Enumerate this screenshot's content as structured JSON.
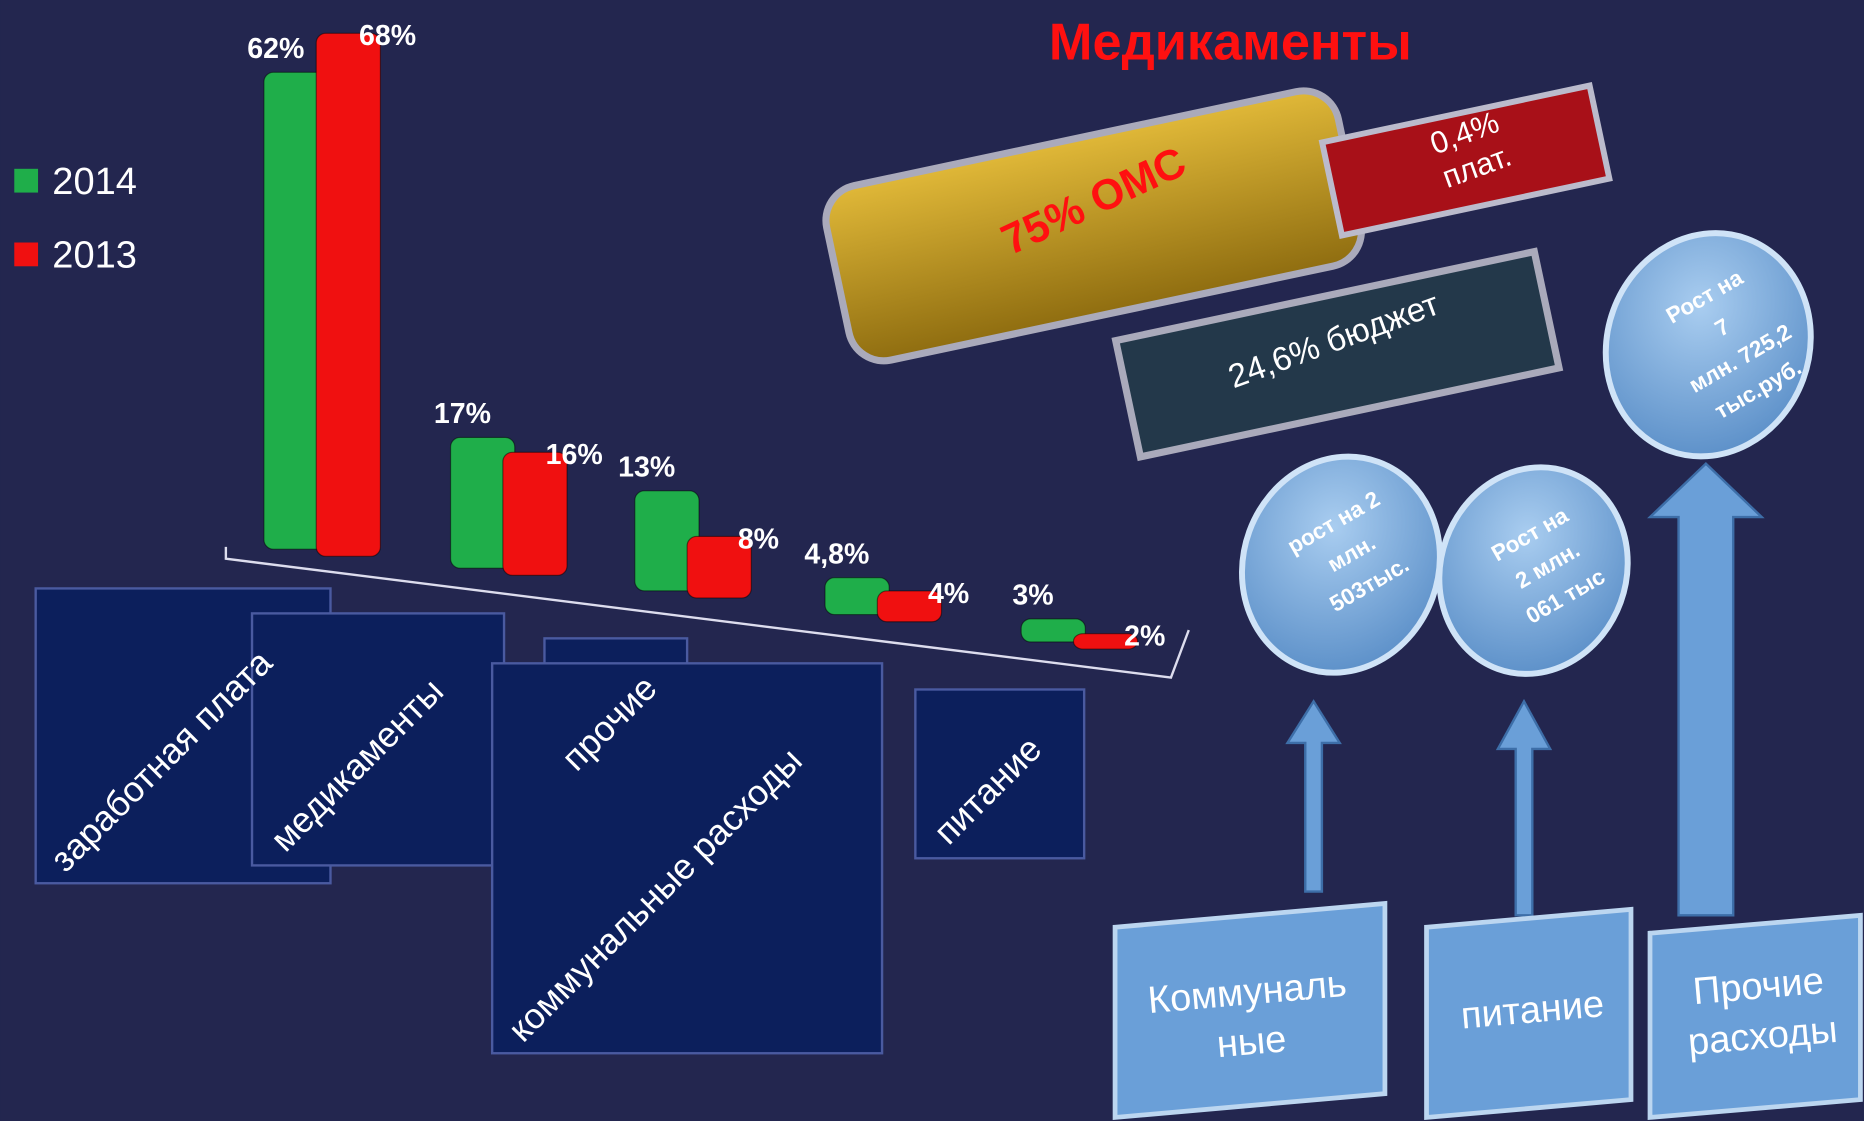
{
  "chart_data": {
    "type": "bar",
    "categories": [
      "заработная плата",
      "медикаменты",
      "прочие",
      "коммунальные расходы",
      "питание"
    ],
    "series": [
      {
        "name": "2014",
        "color": "#1fae4a",
        "values": [
          62,
          17,
          13,
          4.8,
          3
        ],
        "value_labels": [
          "62%",
          "17%",
          "13%",
          "4,8%",
          "3%"
        ]
      },
      {
        "name": "2013",
        "color": "#f01010",
        "values": [
          68,
          16,
          8,
          4,
          2
        ],
        "value_labels": [
          "68%",
          "16%",
          "8%",
          "4%",
          "2%"
        ]
      }
    ]
  },
  "infographic": {
    "title": "Медикаменты",
    "sources": [
      {
        "lines": [
          "75% ОМС"
        ]
      },
      {
        "lines": [
          "0,4%",
          "плат."
        ]
      },
      {
        "lines": [
          "24,6% бюджет"
        ]
      }
    ],
    "growth": [
      {
        "lines": [
          "рост на 2",
          "млн.",
          "503тыс."
        ]
      },
      {
        "lines": [
          "Рост на",
          "2 млн.",
          "061 тыс"
        ]
      },
      {
        "lines": [
          "Рост на",
          "7",
          "млн.  725,2",
          "тыс.руб."
        ]
      }
    ],
    "boxes": [
      {
        "lines": [
          "Коммуналь",
          "ные"
        ]
      },
      {
        "lines": [
          "питание"
        ]
      },
      {
        "lines": [
          "Прочие",
          "расходы"
        ]
      }
    ]
  }
}
